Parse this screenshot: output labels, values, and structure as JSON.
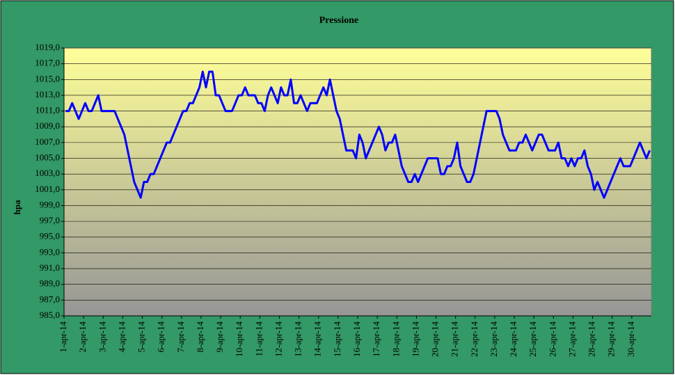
{
  "chart_data": {
    "type": "line",
    "title": "Pressione",
    "y_label": "hpa",
    "categories": [
      "1-apr-14",
      null,
      null,
      null,
      null,
      null,
      "2-apr-14",
      null,
      null,
      null,
      null,
      null,
      "3-apr-14",
      null,
      null,
      null,
      null,
      null,
      "4-apr-14",
      null,
      null,
      null,
      null,
      null,
      "5-apr-14",
      null,
      null,
      null,
      null,
      null,
      "6-apr-14",
      null,
      null,
      null,
      null,
      null,
      "7-apr-14",
      null,
      null,
      null,
      null,
      null,
      "8-apr-14",
      null,
      null,
      null,
      null,
      null,
      "9-apr-14",
      null,
      null,
      null,
      null,
      null,
      "10-apr-14",
      null,
      null,
      null,
      null,
      null,
      "11-apr-14",
      null,
      null,
      null,
      null,
      null,
      "12-apr-14",
      null,
      null,
      null,
      null,
      null,
      "13-apr-14",
      null,
      null,
      null,
      null,
      null,
      "14-apr-14",
      null,
      null,
      null,
      null,
      null,
      "15-apr-14",
      null,
      null,
      null,
      null,
      null,
      "16-apr-14",
      null,
      null,
      null,
      null,
      null,
      "17-apr-14",
      null,
      null,
      null,
      null,
      null,
      "18-apr-14",
      null,
      null,
      null,
      null,
      null,
      "19-apr-14",
      null,
      null,
      null,
      null,
      null,
      "20-apr-14",
      null,
      null,
      null,
      null,
      null,
      "21-apr-14",
      null,
      null,
      null,
      null,
      null,
      "22-apr-14",
      null,
      null,
      null,
      null,
      null,
      "23-apr-14",
      null,
      null,
      null,
      null,
      null,
      "24-apr-14",
      null,
      null,
      null,
      null,
      null,
      "25-apr-14",
      null,
      null,
      null,
      null,
      null,
      "26-apr-14",
      null,
      null,
      null,
      null,
      null,
      "27-apr-14",
      null,
      null,
      null,
      null,
      null,
      "28-apr-14",
      null,
      null,
      null,
      null,
      null,
      "29-apr-14",
      null,
      null,
      null,
      null,
      null,
      "30-apr-14",
      null,
      null,
      null,
      null,
      null
    ],
    "series": [
      {
        "name": "Pressione",
        "color": "#0000ff",
        "values": [
          1011,
          1011,
          1012,
          1011,
          1010,
          1011,
          1012,
          1011,
          1011,
          1012,
          1013,
          1011,
          1011,
          1011,
          1011,
          1011,
          1010,
          1009,
          1008,
          1006,
          1004,
          1002,
          1001,
          1000,
          1002,
          1002,
          1003,
          1003,
          1004,
          1005,
          1006,
          1007,
          1007,
          1008,
          1009,
          1010,
          1011,
          1011,
          1012,
          1012,
          1013,
          1014,
          1016,
          1014,
          1016,
          1016,
          1013,
          1013,
          1012,
          1011,
          1011,
          1011,
          1012,
          1013,
          1013,
          1014,
          1013,
          1013,
          1013,
          1012,
          1012,
          1011,
          1013,
          1014,
          1013,
          1012,
          1014,
          1013,
          1013,
          1015,
          1012,
          1012,
          1013,
          1012,
          1011,
          1012,
          1012,
          1012,
          1013,
          1014,
          1013,
          1015,
          1013,
          1011,
          1010,
          1008,
          1006,
          1006,
          1006,
          1005,
          1008,
          1007,
          1005,
          1006,
          1007,
          1008,
          1009,
          1008,
          1006,
          1007,
          1007,
          1008,
          1006,
          1004,
          1003,
          1002,
          1002,
          1003,
          1002,
          1003,
          1004,
          1005,
          1005,
          1005,
          1005,
          1003,
          1003,
          1004,
          1004,
          1005,
          1007,
          1004,
          1003,
          1002,
          1002,
          1003,
          1005,
          1007,
          1009,
          1011,
          1011,
          1011,
          1011,
          1010,
          1008,
          1007,
          1006,
          1006,
          1006,
          1007,
          1007,
          1008,
          1007,
          1006,
          1007,
          1008,
          1008,
          1007,
          1006,
          1006,
          1006,
          1007,
          1005,
          1005,
          1004,
          1005,
          1004,
          1005,
          1005,
          1006,
          1004,
          1003,
          1001,
          1002,
          1001,
          1000,
          1001,
          1002,
          1003,
          1004,
          1005,
          1004,
          1004,
          1004,
          1005,
          1006,
          1007,
          1006,
          1005,
          1006
        ]
      }
    ],
    "ylim": [
      985,
      1019
    ],
    "yticks": [
      {
        "value": 985,
        "label": "985,0"
      },
      {
        "value": 987,
        "label": "987,0"
      },
      {
        "value": 989,
        "label": "989,0"
      },
      {
        "value": 991,
        "label": "991,0"
      },
      {
        "value": 993,
        "label": "993,0"
      },
      {
        "value": 995,
        "label": "995,0"
      },
      {
        "value": 997,
        "label": "997,0"
      },
      {
        "value": 999,
        "label": "999,0"
      },
      {
        "value": 1001,
        "label": "1001,0"
      },
      {
        "value": 1003,
        "label": "1003,0"
      },
      {
        "value": 1005,
        "label": "1005,0"
      },
      {
        "value": 1007,
        "label": "1007,0"
      },
      {
        "value": 1009,
        "label": "1009,0"
      },
      {
        "value": 1011,
        "label": "1011,0"
      },
      {
        "value": 1013,
        "label": "1013,0"
      },
      {
        "value": 1015,
        "label": "1015,0"
      },
      {
        "value": 1017,
        "label": "1017,0"
      },
      {
        "value": 1019,
        "label": "1019,0"
      }
    ],
    "grid": true
  }
}
